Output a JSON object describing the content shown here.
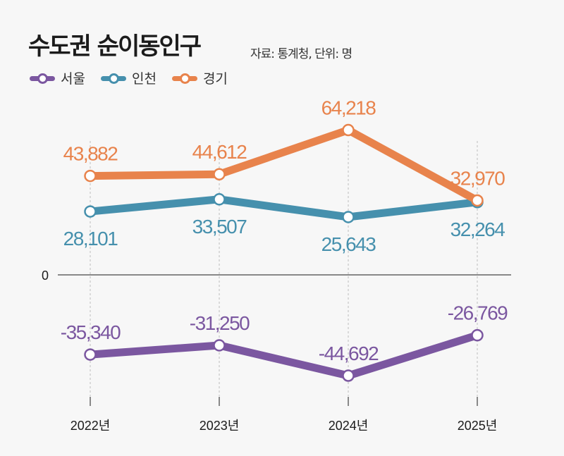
{
  "header": {
    "title": "수도권 순이동인구",
    "source": "자료: 통계청, 단위: 명"
  },
  "chart_data": {
    "type": "line",
    "title": "수도권 순이동인구",
    "subtitle": "자료: 통계청, 단위: 명",
    "xlabel": "",
    "ylabel": "",
    "categories": [
      "2022년",
      "2023년",
      "2024년",
      "2025년"
    ],
    "zero_label": "0",
    "ylim": [
      -58000,
      80000
    ],
    "grid": false,
    "legend_position": "top-left",
    "series": [
      {
        "name": "서울",
        "color": "#7b57a0",
        "values": [
          -35340,
          -31250,
          -44692,
          -26769
        ],
        "labels": [
          "-35,340",
          "-31,250",
          "-44,692",
          "-26,769"
        ],
        "label_pos": [
          "above",
          "above",
          "above",
          "above"
        ]
      },
      {
        "name": "인천",
        "color": "#4690ad",
        "values": [
          28101,
          33507,
          25643,
          32264
        ],
        "labels": [
          "28,101",
          "33,507",
          "25,643",
          "32,264"
        ],
        "label_pos": [
          "below",
          "below",
          "below",
          "below"
        ]
      },
      {
        "name": "경기",
        "color": "#e8834c",
        "values": [
          43882,
          44612,
          64218,
          32970
        ],
        "labels": [
          "43,882",
          "44,612",
          "64,218",
          "32,970"
        ],
        "label_pos": [
          "above",
          "above",
          "above",
          "above"
        ]
      }
    ]
  }
}
